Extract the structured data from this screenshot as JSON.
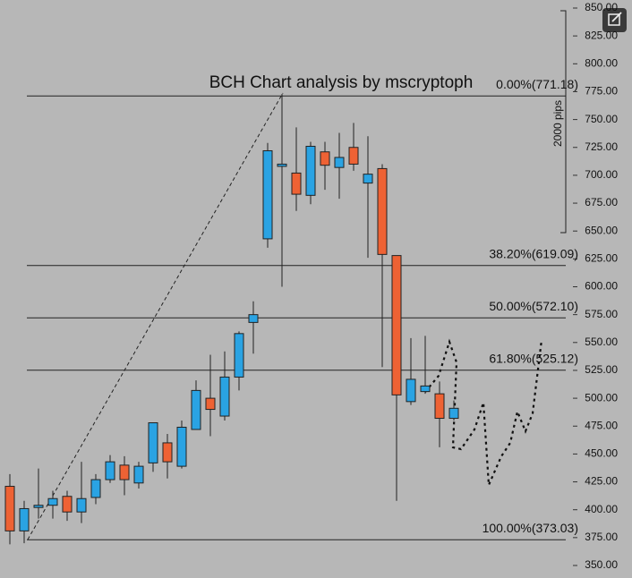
{
  "chart_data": {
    "type": "candlestick",
    "title": "BCH Chart analysis by mscryptoph",
    "measure_label": "2000 pips",
    "up_color": "#2aa3e3",
    "down_color": "#ee6234",
    "ylim": [
      350,
      850
    ],
    "yticks": [
      {
        "value": 850,
        "label": "850.00"
      },
      {
        "value": 825,
        "label": "825.00"
      },
      {
        "value": 800,
        "label": "800.00"
      },
      {
        "value": 775,
        "label": "775.00"
      },
      {
        "value": 750,
        "label": "750.00"
      },
      {
        "value": 725,
        "label": "725.00"
      },
      {
        "value": 700,
        "label": "700.00"
      },
      {
        "value": 675,
        "label": "675.00"
      },
      {
        "value": 650,
        "label": "650.00"
      },
      {
        "value": 625,
        "label": "625.00"
      },
      {
        "value": 600,
        "label": "600.00"
      },
      {
        "value": 575,
        "label": "575.00"
      },
      {
        "value": 550,
        "label": "550.00"
      },
      {
        "value": 525,
        "label": "525.00"
      },
      {
        "value": 500,
        "label": "500.00"
      },
      {
        "value": 475,
        "label": "475.00"
      },
      {
        "value": 450,
        "label": "450.00"
      },
      {
        "value": 425,
        "label": "425.00"
      },
      {
        "value": 400,
        "label": "400.00"
      },
      {
        "value": 375,
        "label": "375.00"
      },
      {
        "value": 350,
        "label": "350.00"
      }
    ],
    "fib_levels": [
      {
        "value": 771.18,
        "label": "0.00%(771.18)"
      },
      {
        "value": 619.09,
        "label": "38.20%(619.09)"
      },
      {
        "value": 572.1,
        "label": "50.00%(572.10)"
      },
      {
        "value": 525.12,
        "label": "61.80%(525.12)"
      },
      {
        "value": 373.03,
        "label": "100.00%(373.03)"
      }
    ],
    "open": [
      421,
      381,
      402,
      404,
      412,
      398,
      411,
      427,
      440,
      424,
      442,
      460,
      439,
      472,
      500,
      484,
      519,
      568,
      643,
      708,
      702,
      682,
      721,
      707,
      725,
      693,
      706,
      628,
      497,
      506,
      504,
      482
    ],
    "high": [
      432,
      408,
      437,
      417,
      417,
      443,
      432,
      449,
      448,
      443,
      478,
      468,
      480,
      516,
      539,
      542,
      560,
      587,
      729,
      773,
      743,
      730,
      730,
      738,
      747,
      735,
      710,
      628,
      554,
      556,
      515,
      498
    ],
    "low": [
      369,
      370,
      392,
      392,
      390,
      388,
      405,
      424,
      413,
      419,
      434,
      428,
      437,
      472,
      466,
      480,
      507,
      540,
      635,
      600,
      668,
      674,
      687,
      679,
      704,
      626,
      528,
      408,
      494,
      504,
      456,
      480
    ],
    "close": [
      381,
      401,
      404,
      410,
      398,
      410,
      427,
      443,
      427,
      439,
      478,
      443,
      474,
      507,
      490,
      519,
      558,
      575,
      722,
      710,
      683,
      726,
      709,
      716,
      710,
      701,
      629,
      503,
      517,
      511,
      482,
      491
    ]
  }
}
